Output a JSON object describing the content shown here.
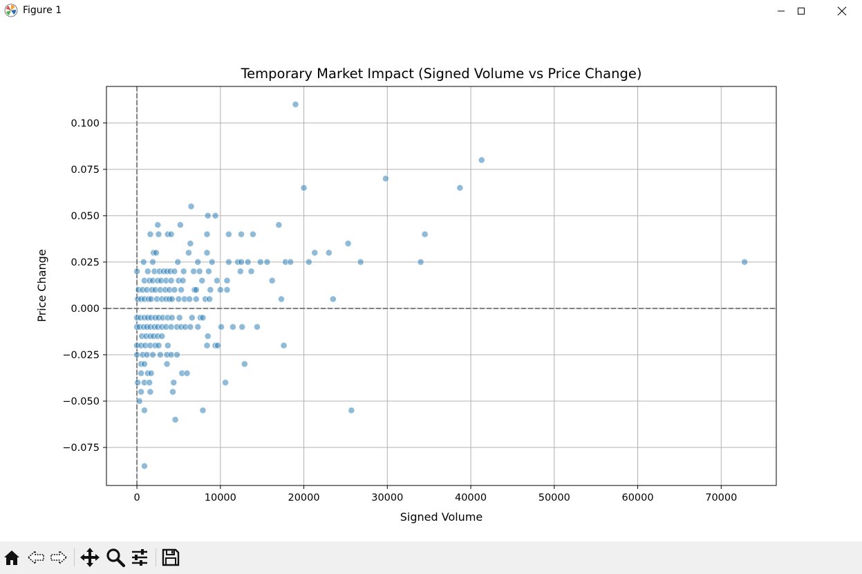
{
  "window": {
    "title": "Figure 1",
    "icons": [
      "matplotlib-logo-icon",
      "minimize-icon",
      "maximize-icon",
      "close-icon"
    ]
  },
  "toolbar": {
    "buttons": [
      "home-icon",
      "back-arrow-icon",
      "forward-arrow-icon",
      "pan-move-icon",
      "zoom-magnifier-icon",
      "subplots-sliders-icon",
      "save-floppy-icon"
    ]
  },
  "colors": {
    "marker": "#1f77b4",
    "grid": "#b0b0b0",
    "refline": "#808080",
    "toolbar_bg": "#f0f0f0"
  },
  "chart_data": {
    "type": "scatter",
    "title": "Temporary Market Impact (Signed Volume vs Price Change)",
    "xlabel": "Signed Volume",
    "ylabel": "Price Change",
    "xlim": [
      -3650,
      76600
    ],
    "ylim": [
      -0.0955,
      0.1197
    ],
    "xticks": [
      0,
      10000,
      20000,
      30000,
      40000,
      50000,
      60000,
      70000
    ],
    "xtick_labels": [
      "0",
      "10000",
      "20000",
      "30000",
      "40000",
      "50000",
      "60000",
      "70000"
    ],
    "yticks": [
      -0.075,
      -0.05,
      -0.025,
      0.0,
      0.025,
      0.05,
      0.075,
      0.1
    ],
    "ytick_labels": [
      "−0.075",
      "−0.050",
      "−0.025",
      "0.000",
      "0.025",
      "0.050",
      "0.075",
      "0.100"
    ],
    "grid": true,
    "reference_lines": {
      "x": 0,
      "y": 0,
      "style": "dashed"
    },
    "marker_alpha": 0.5,
    "points": [
      [
        19000,
        0.11
      ],
      [
        41300,
        0.08
      ],
      [
        20000,
        0.065
      ],
      [
        29800,
        0.07
      ],
      [
        38700,
        0.065
      ],
      [
        6500,
        0.055
      ],
      [
        8500,
        0.05
      ],
      [
        9400,
        0.05
      ],
      [
        2500,
        0.045
      ],
      [
        5200,
        0.045
      ],
      [
        17000,
        0.045
      ],
      [
        1600,
        0.04
      ],
      [
        2600,
        0.04
      ],
      [
        3700,
        0.04
      ],
      [
        4100,
        0.04
      ],
      [
        8400,
        0.04
      ],
      [
        11000,
        0.04
      ],
      [
        12500,
        0.04
      ],
      [
        13900,
        0.04
      ],
      [
        34500,
        0.04
      ],
      [
        6400,
        0.035
      ],
      [
        25300,
        0.035
      ],
      [
        2000,
        0.03
      ],
      [
        2300,
        0.03
      ],
      [
        6200,
        0.03
      ],
      [
        8400,
        0.03
      ],
      [
        21300,
        0.03
      ],
      [
        23000,
        0.03
      ],
      [
        800,
        0.025
      ],
      [
        1900,
        0.025
      ],
      [
        4900,
        0.025
      ],
      [
        7300,
        0.025
      ],
      [
        9000,
        0.025
      ],
      [
        11000,
        0.025
      ],
      [
        12100,
        0.025
      ],
      [
        12500,
        0.025
      ],
      [
        13300,
        0.025
      ],
      [
        14800,
        0.025
      ],
      [
        15600,
        0.025
      ],
      [
        17800,
        0.025
      ],
      [
        18400,
        0.025
      ],
      [
        20600,
        0.025
      ],
      [
        26800,
        0.025
      ],
      [
        34000,
        0.025
      ],
      [
        72800,
        0.025
      ],
      [
        0,
        0.02
      ],
      [
        1300,
        0.02
      ],
      [
        2100,
        0.02
      ],
      [
        2700,
        0.02
      ],
      [
        3200,
        0.02
      ],
      [
        3600,
        0.02
      ],
      [
        4000,
        0.02
      ],
      [
        4500,
        0.02
      ],
      [
        5600,
        0.02
      ],
      [
        6800,
        0.02
      ],
      [
        7500,
        0.02
      ],
      [
        8600,
        0.02
      ],
      [
        12400,
        0.02
      ],
      [
        13700,
        0.02
      ],
      [
        900,
        0.015
      ],
      [
        1500,
        0.015
      ],
      [
        1900,
        0.015
      ],
      [
        2500,
        0.015
      ],
      [
        2900,
        0.015
      ],
      [
        3500,
        0.015
      ],
      [
        4100,
        0.015
      ],
      [
        5000,
        0.015
      ],
      [
        5500,
        0.015
      ],
      [
        7800,
        0.015
      ],
      [
        9600,
        0.015
      ],
      [
        10800,
        0.015
      ],
      [
        16200,
        0.015
      ],
      [
        200,
        0.01
      ],
      [
        700,
        0.01
      ],
      [
        1200,
        0.01
      ],
      [
        1800,
        0.01
      ],
      [
        2200,
        0.01
      ],
      [
        2800,
        0.01
      ],
      [
        3400,
        0.01
      ],
      [
        3900,
        0.01
      ],
      [
        4500,
        0.01
      ],
      [
        5300,
        0.01
      ],
      [
        6900,
        0.01
      ],
      [
        7100,
        0.01
      ],
      [
        8800,
        0.01
      ],
      [
        10000,
        0.01
      ],
      [
        10800,
        0.01
      ],
      [
        100,
        0.005
      ],
      [
        500,
        0.005
      ],
      [
        900,
        0.005
      ],
      [
        1400,
        0.005
      ],
      [
        1700,
        0.005
      ],
      [
        2400,
        0.005
      ],
      [
        3000,
        0.005
      ],
      [
        3500,
        0.005
      ],
      [
        3900,
        0.005
      ],
      [
        4200,
        0.005
      ],
      [
        5000,
        0.005
      ],
      [
        5700,
        0.005
      ],
      [
        6300,
        0.005
      ],
      [
        7100,
        0.005
      ],
      [
        8200,
        0.005
      ],
      [
        8700,
        0.005
      ],
      [
        17300,
        0.005
      ],
      [
        23500,
        0.005
      ],
      [
        0,
        -0.005
      ],
      [
        400,
        -0.005
      ],
      [
        900,
        -0.005
      ],
      [
        1300,
        -0.005
      ],
      [
        1700,
        -0.005
      ],
      [
        2200,
        -0.005
      ],
      [
        2600,
        -0.005
      ],
      [
        3100,
        -0.005
      ],
      [
        3700,
        -0.005
      ],
      [
        4200,
        -0.005
      ],
      [
        5100,
        -0.005
      ],
      [
        6600,
        -0.005
      ],
      [
        7600,
        -0.005
      ],
      [
        7900,
        -0.005
      ],
      [
        0,
        -0.01
      ],
      [
        300,
        -0.01
      ],
      [
        800,
        -0.01
      ],
      [
        1200,
        -0.01
      ],
      [
        1600,
        -0.01
      ],
      [
        2100,
        -0.01
      ],
      [
        2500,
        -0.01
      ],
      [
        3000,
        -0.01
      ],
      [
        3500,
        -0.01
      ],
      [
        4100,
        -0.01
      ],
      [
        4800,
        -0.01
      ],
      [
        5300,
        -0.01
      ],
      [
        5800,
        -0.01
      ],
      [
        6400,
        -0.01
      ],
      [
        7300,
        -0.01
      ],
      [
        10100,
        -0.01
      ],
      [
        11500,
        -0.01
      ],
      [
        12600,
        -0.01
      ],
      [
        14400,
        -0.01
      ],
      [
        600,
        -0.015
      ],
      [
        1100,
        -0.015
      ],
      [
        1600,
        -0.015
      ],
      [
        2000,
        -0.015
      ],
      [
        2500,
        -0.015
      ],
      [
        3000,
        -0.015
      ],
      [
        8500,
        -0.015
      ],
      [
        0,
        -0.02
      ],
      [
        500,
        -0.02
      ],
      [
        1000,
        -0.02
      ],
      [
        1600,
        -0.02
      ],
      [
        2200,
        -0.02
      ],
      [
        2600,
        -0.02
      ],
      [
        3700,
        -0.02
      ],
      [
        8400,
        -0.02
      ],
      [
        9400,
        -0.02
      ],
      [
        9700,
        -0.02
      ],
      [
        17600,
        -0.02
      ],
      [
        0,
        -0.025
      ],
      [
        700,
        -0.025
      ],
      [
        1200,
        -0.025
      ],
      [
        1900,
        -0.025
      ],
      [
        2800,
        -0.025
      ],
      [
        3600,
        -0.025
      ],
      [
        4100,
        -0.025
      ],
      [
        4800,
        -0.025
      ],
      [
        500,
        -0.03
      ],
      [
        900,
        -0.03
      ],
      [
        3600,
        -0.03
      ],
      [
        12900,
        -0.03
      ],
      [
        500,
        -0.035
      ],
      [
        1300,
        -0.035
      ],
      [
        1700,
        -0.035
      ],
      [
        5400,
        -0.035
      ],
      [
        6000,
        -0.035
      ],
      [
        100,
        -0.04
      ],
      [
        900,
        -0.04
      ],
      [
        1500,
        -0.04
      ],
      [
        4400,
        -0.04
      ],
      [
        10600,
        -0.04
      ],
      [
        500,
        -0.045
      ],
      [
        1600,
        -0.045
      ],
      [
        4300,
        -0.045
      ],
      [
        300,
        -0.05
      ],
      [
        900,
        -0.055
      ],
      [
        7900,
        -0.055
      ],
      [
        25700,
        -0.055
      ],
      [
        4600,
        -0.06
      ],
      [
        900,
        -0.085
      ]
    ]
  }
}
